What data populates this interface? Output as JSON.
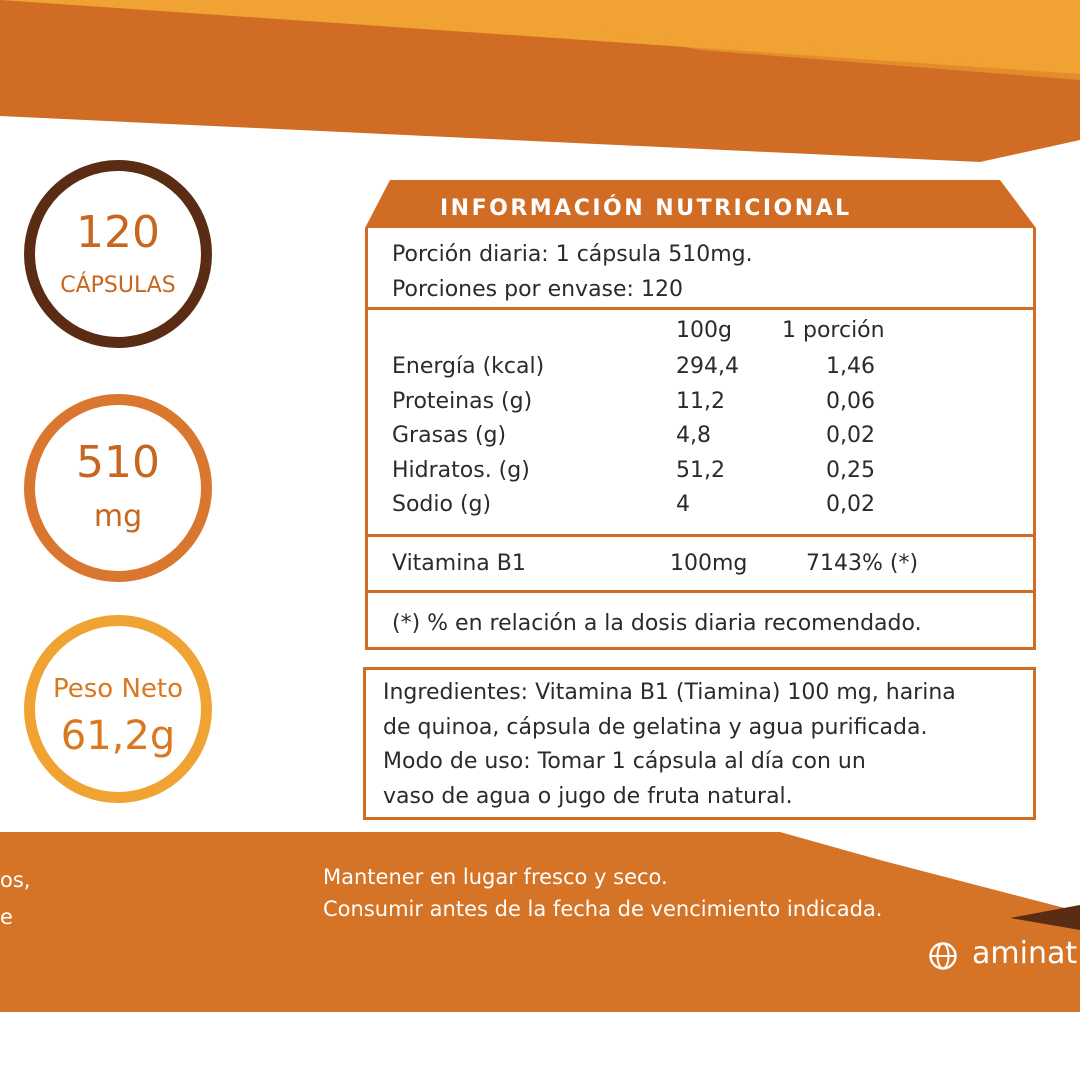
{
  "colors": {
    "top_band": "#d06c24",
    "top_accent": "#f0a232",
    "bottom_band": "#d57326",
    "dark_brown": "#5a2c14"
  },
  "badges": {
    "capsules": {
      "number": "120",
      "unit": "CÁPSULAS"
    },
    "weight": {
      "number": "510",
      "unit": "mg"
    },
    "net": {
      "label": "Peso Neto",
      "value": "61,2g"
    }
  },
  "nutrition": {
    "title": "INFORMACIÓN NUTRICIONAL",
    "daily_portion": "Porción diaria: 1 cápsula 510mg.",
    "servings": "Porciones por envase: 120",
    "col_100g": "100g",
    "col_portion": "1 porción",
    "rows": [
      {
        "name": "Energía (kcal)",
        "per100": "294,4",
        "portion": "1,46"
      },
      {
        "name": "Proteinas (g)",
        "per100": "11,2",
        "portion": "0,06"
      },
      {
        "name": "Grasas (g)",
        "per100": "4,8",
        "portion": "0,02"
      },
      {
        "name": "Hidratos. (g)",
        "per100": "51,2",
        "portion": "0,25"
      },
      {
        "name": "Sodio (g)",
        "per100": "4",
        "portion": "0,02"
      }
    ],
    "vitamin": {
      "name": "Vitamina B1",
      "per100": "100mg",
      "portion": "7143% (*)"
    },
    "note": "(*) % en relación a la dosis diaria recomendado."
  },
  "ingredients": {
    "line1": "Ingredientes: Vitamina B1 (Tiamina) 100 mg, harina",
    "line2": "de quinoa, cápsula de gelatina y agua purificada.",
    "line3": "Modo de uso: Tomar 1 cápsula al día con un",
    "line4": "vaso de agua o jugo de fruta natural."
  },
  "footer": {
    "left1": "os,",
    "left2": "e",
    "line1": "Mantener en lugar fresco y seco.",
    "line2": "Consumir antes de la fecha de vencimiento indicada.",
    "website": "aminat",
    "website_icon": "globe-icon"
  }
}
